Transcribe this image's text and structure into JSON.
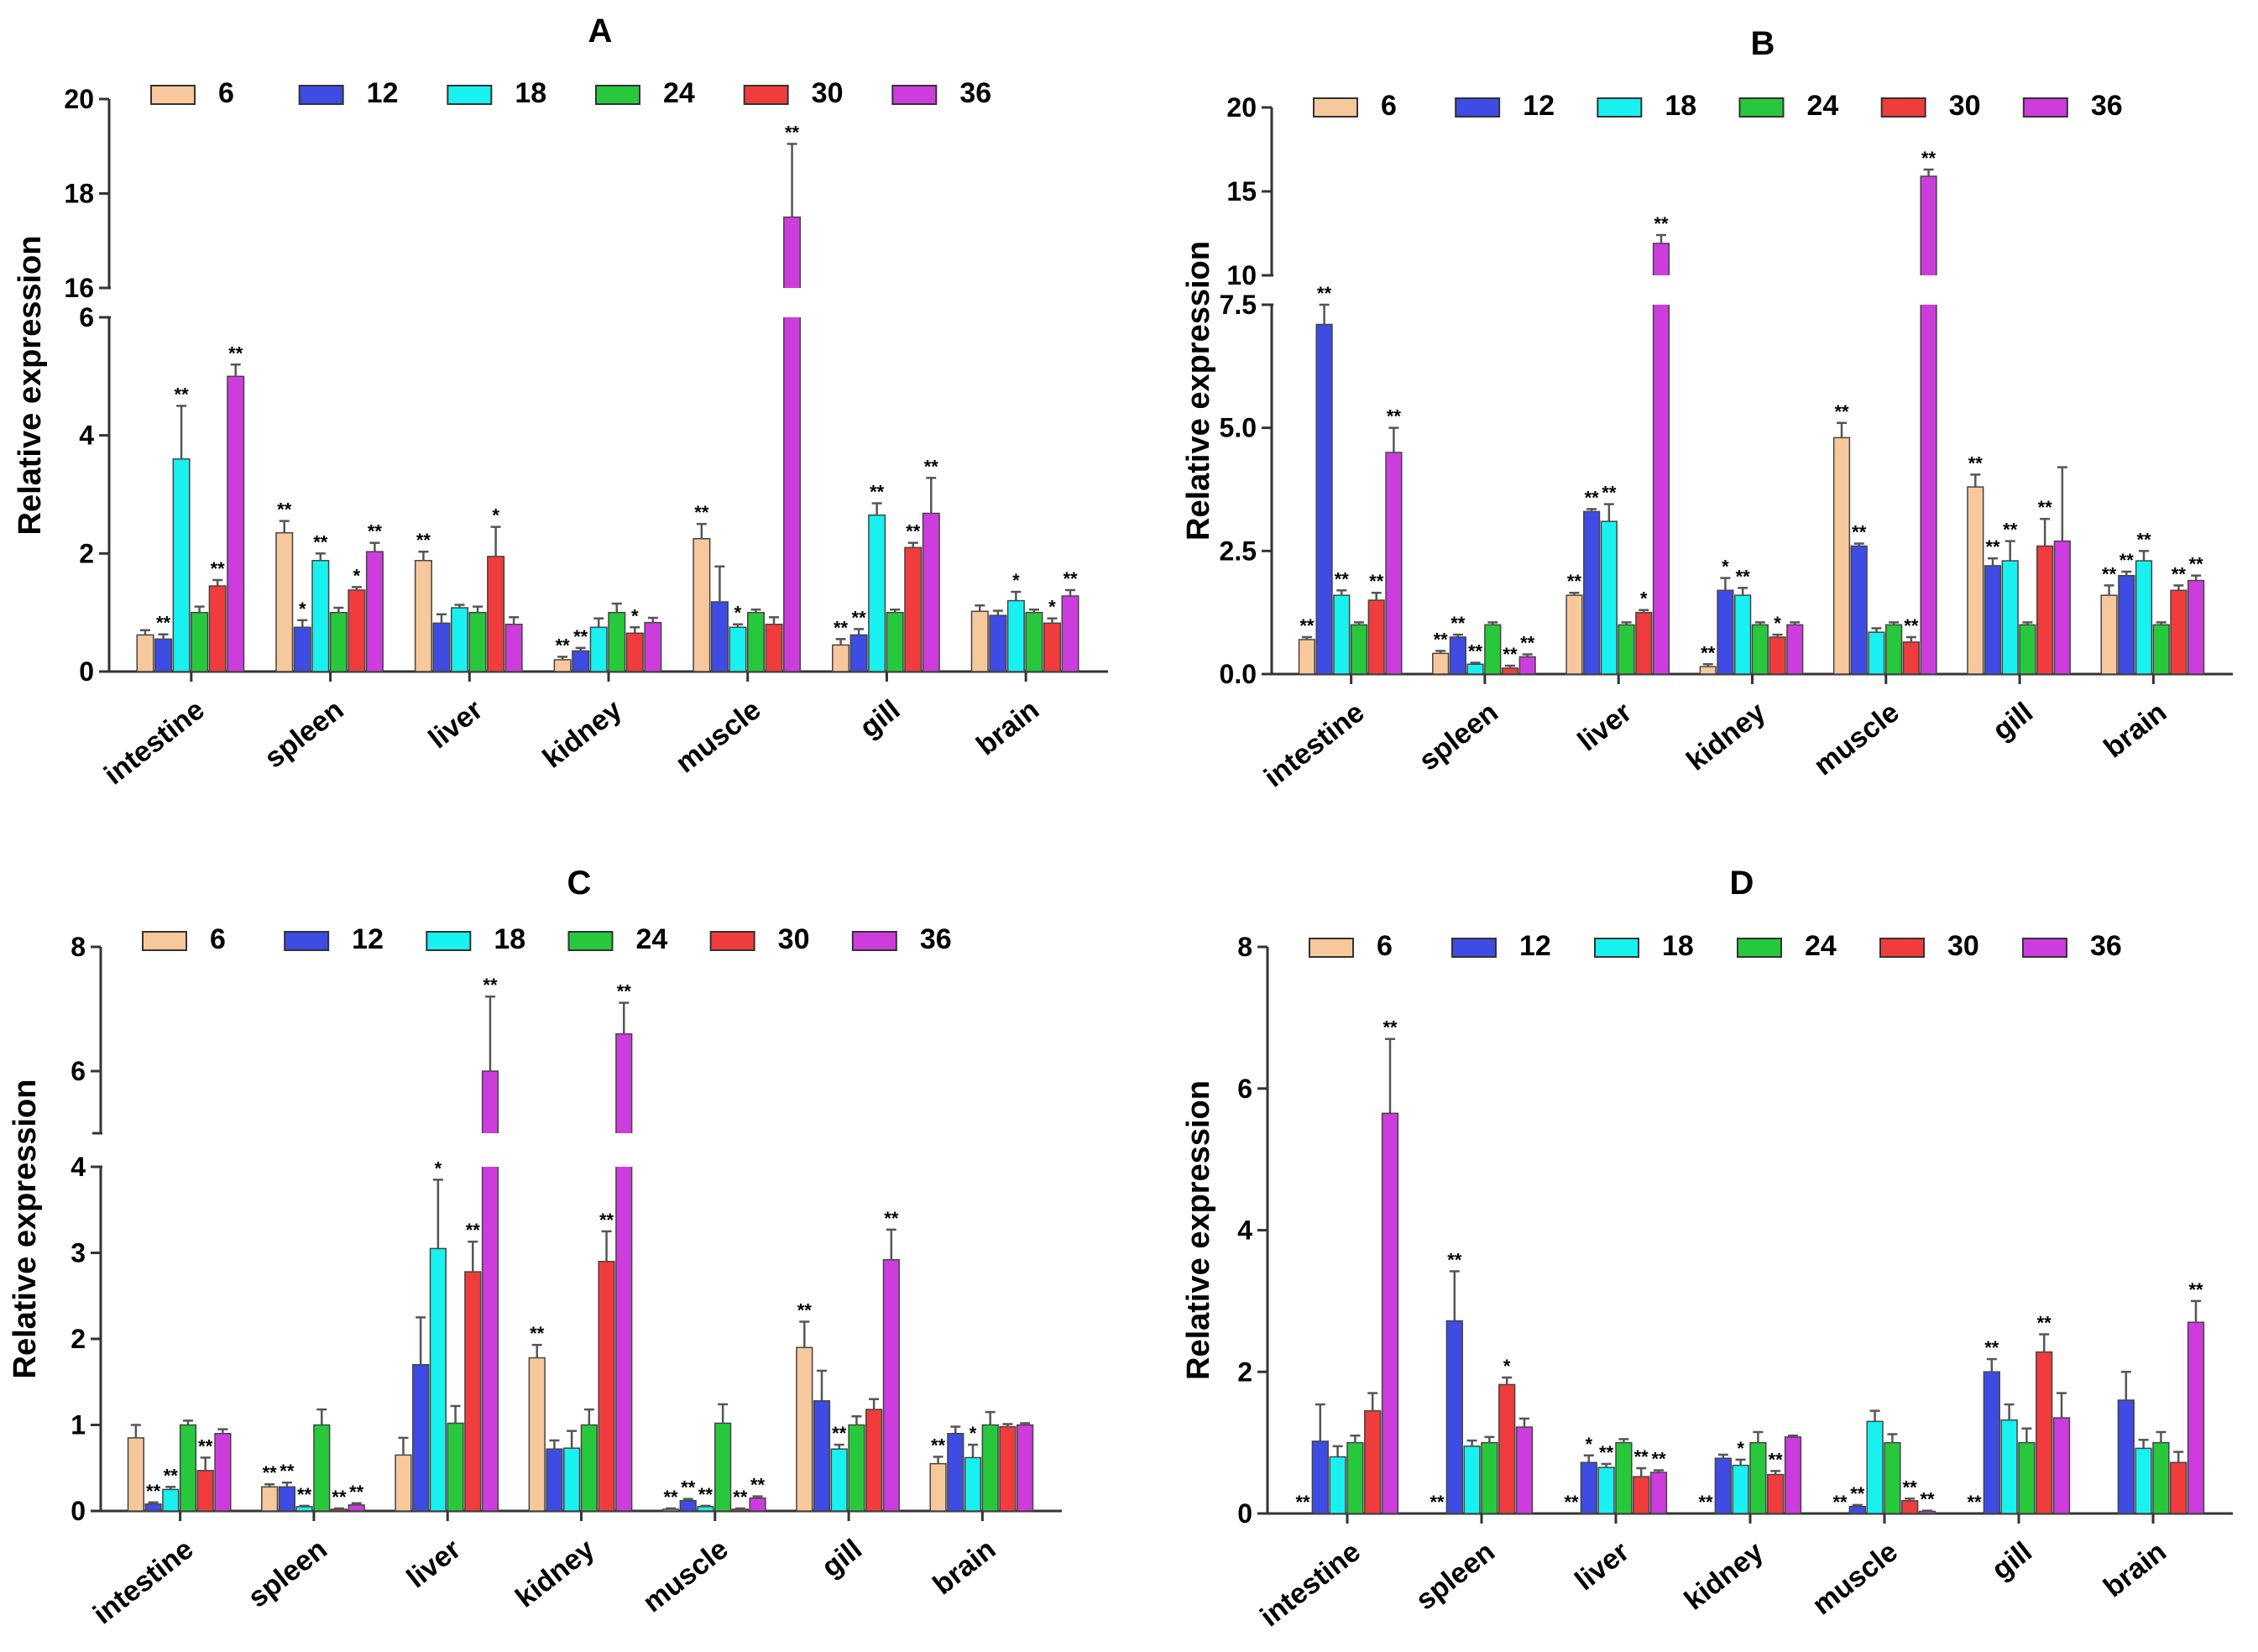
{
  "chart_data": [
    {
      "panel": "A",
      "type": "bar",
      "title": "A",
      "xlabel": "",
      "ylabel": "Relative expression",
      "categories": [
        "intestine",
        "spleen",
        "liver",
        "kidney",
        "muscle",
        "gill",
        "brain"
      ],
      "ylim": [
        0,
        20
      ],
      "y_break": [
        6,
        16
      ],
      "yticks": [
        0,
        2,
        4,
        6,
        16,
        18,
        20
      ],
      "ytick_labels": [
        "0",
        "2",
        "4",
        "6",
        "16",
        "18",
        "20"
      ],
      "series": [
        {
          "name": "6",
          "color": "#f7c89b",
          "values": [
            0.62,
            2.35,
            1.88,
            0.2,
            2.25,
            0.45,
            1.02
          ],
          "errors": [
            0.08,
            0.2,
            0.15,
            0.05,
            0.25,
            0.1,
            0.1
          ],
          "sig": [
            "",
            "**",
            "**",
            "**",
            "**",
            "**",
            ""
          ]
        },
        {
          "name": "12",
          "color": "#3e4ce3",
          "values": [
            0.55,
            0.75,
            0.82,
            0.35,
            1.18,
            0.62,
            0.95
          ],
          "errors": [
            0.08,
            0.12,
            0.15,
            0.05,
            0.6,
            0.1,
            0.08
          ],
          "sig": [
            "**",
            "*",
            "",
            "**",
            "",
            "**",
            ""
          ]
        },
        {
          "name": "18",
          "color": "#19f0f0",
          "values": [
            3.6,
            1.88,
            1.08,
            0.75,
            0.75,
            2.65,
            1.2
          ],
          "errors": [
            0.9,
            0.12,
            0.05,
            0.15,
            0.05,
            0.2,
            0.15
          ],
          "sig": [
            "**",
            "**",
            "",
            "",
            "*",
            "**",
            "*"
          ]
        },
        {
          "name": "24",
          "color": "#28c83c",
          "values": [
            1.0,
            1.0,
            1.0,
            1.0,
            1.0,
            1.0,
            1.0
          ],
          "errors": [
            0.1,
            0.08,
            0.1,
            0.15,
            0.05,
            0.05,
            0.05
          ],
          "sig": [
            "",
            "",
            "",
            "",
            "",
            "",
            ""
          ]
        },
        {
          "name": "30",
          "color": "#f03c3c",
          "values": [
            1.45,
            1.38,
            1.95,
            0.65,
            0.8,
            2.1,
            0.82
          ],
          "errors": [
            0.1,
            0.05,
            0.5,
            0.1,
            0.12,
            0.08,
            0.08
          ],
          "sig": [
            "**",
            "*",
            "*",
            "*",
            "",
            "**",
            "*"
          ]
        },
        {
          "name": "36",
          "color": "#cd3cdc",
          "values": [
            5.0,
            2.03,
            0.8,
            0.83,
            17.5,
            2.68,
            1.28
          ],
          "errors": [
            0.2,
            0.15,
            0.12,
            0.08,
            1.55,
            0.6,
            0.1
          ],
          "sig": [
            "**",
            "**",
            "",
            "",
            "**",
            "**",
            "**"
          ]
        }
      ]
    },
    {
      "panel": "B",
      "type": "bar",
      "title": "B",
      "xlabel": "",
      "ylabel": "Relative expression",
      "categories": [
        "intestine",
        "spleen",
        "liver",
        "kidney",
        "muscle",
        "gill",
        "brain"
      ],
      "ylim": [
        0,
        20
      ],
      "y_break": [
        7.5,
        10
      ],
      "yticks": [
        0,
        2.5,
        5,
        7.5,
        10,
        15,
        20
      ],
      "ytick_labels": [
        "0.0",
        "2.5",
        "5.0",
        "7.5",
        "10",
        "15",
        "20"
      ],
      "series": [
        {
          "name": "6",
          "color": "#f7c89b",
          "values": [
            0.7,
            0.42,
            1.6,
            0.15,
            4.8,
            3.8,
            1.6
          ],
          "errors": [
            0.05,
            0.05,
            0.05,
            0.05,
            0.3,
            0.25,
            0.2
          ],
          "sig": [
            "**",
            "**",
            "**",
            "**",
            "**",
            "**",
            "**"
          ]
        },
        {
          "name": "12",
          "color": "#3e4ce3",
          "values": [
            7.1,
            0.75,
            3.3,
            1.7,
            2.6,
            2.2,
            2.0
          ],
          "errors": [
            0.6,
            0.05,
            0.05,
            0.25,
            0.05,
            0.15,
            0.08
          ],
          "sig": [
            "**",
            "**",
            "**",
            "*",
            "**",
            "**",
            "**"
          ]
        },
        {
          "name": "18",
          "color": "#19f0f0",
          "values": [
            1.6,
            0.2,
            3.1,
            1.6,
            0.85,
            2.3,
            2.3
          ],
          "errors": [
            0.1,
            0.03,
            0.35,
            0.15,
            0.08,
            0.4,
            0.2
          ],
          "sig": [
            "**",
            "**",
            "**",
            "**",
            "",
            "**",
            "**"
          ]
        },
        {
          "name": "24",
          "color": "#28c83c",
          "values": [
            1.0,
            1.0,
            1.0,
            1.0,
            1.0,
            1.0,
            1.0
          ],
          "errors": [
            0.05,
            0.05,
            0.05,
            0.05,
            0.05,
            0.05,
            0.05
          ],
          "sig": [
            "",
            "",
            "",
            "",
            "",
            "",
            ""
          ]
        },
        {
          "name": "30",
          "color": "#f03c3c",
          "values": [
            1.5,
            0.12,
            1.25,
            0.75,
            0.65,
            2.6,
            1.7
          ],
          "errors": [
            0.15,
            0.05,
            0.05,
            0.05,
            0.1,
            0.55,
            0.1
          ],
          "sig": [
            "**",
            "**",
            "*",
            "*",
            "**",
            "**",
            "**"
          ]
        },
        {
          "name": "36",
          "color": "#cd3cdc",
          "values": [
            4.5,
            0.35,
            11.9,
            1.0,
            15.9,
            2.7,
            1.9
          ],
          "errors": [
            0.5,
            0.05,
            0.5,
            0.05,
            0.4,
            1.5,
            0.1
          ],
          "sig": [
            "**",
            "**",
            "**",
            "",
            "**",
            "",
            "**"
          ]
        }
      ]
    },
    {
      "panel": "C",
      "type": "bar",
      "title": "C",
      "xlabel": "",
      "ylabel": "Relative expression",
      "categories": [
        "intestine",
        "spleen",
        "liver",
        "kidney",
        "muscle",
        "gill",
        "brain"
      ],
      "ylim": [
        0,
        8
      ],
      "y_break": [
        4,
        5
      ],
      "yticks": [
        0,
        1,
        2,
        3,
        4,
        6,
        8
      ],
      "ytick_labels": [
        "0",
        "1",
        "2",
        "3",
        "4",
        "6",
        "8"
      ],
      "series": [
        {
          "name": "6",
          "color": "#f7c89b",
          "values": [
            0.85,
            0.28,
            0.65,
            1.78,
            0.02,
            1.9,
            0.55
          ],
          "errors": [
            0.15,
            0.03,
            0.2,
            0.15,
            0.01,
            0.3,
            0.08
          ],
          "sig": [
            "",
            "**",
            "",
            "**",
            "**",
            "**",
            "**"
          ]
        },
        {
          "name": "12",
          "color": "#3e4ce3",
          "values": [
            0.08,
            0.28,
            1.7,
            0.72,
            0.12,
            1.28,
            0.9
          ],
          "errors": [
            0.02,
            0.05,
            0.55,
            0.1,
            0.02,
            0.35,
            0.08
          ],
          "sig": [
            "**",
            "**",
            "",
            "",
            "**",
            "",
            ""
          ]
        },
        {
          "name": "18",
          "color": "#19f0f0",
          "values": [
            0.25,
            0.05,
            3.05,
            0.73,
            0.05,
            0.72,
            0.62
          ],
          "errors": [
            0.03,
            0.01,
            0.8,
            0.2,
            0.01,
            0.05,
            0.15
          ],
          "sig": [
            "**",
            "**",
            "*",
            "",
            "**",
            "**",
            "*"
          ]
        },
        {
          "name": "24",
          "color": "#28c83c",
          "values": [
            1.0,
            1.0,
            1.02,
            1.0,
            1.02,
            1.0,
            1.0
          ],
          "errors": [
            0.05,
            0.18,
            0.2,
            0.18,
            0.22,
            0.1,
            0.15
          ],
          "sig": [
            "",
            "",
            "",
            "",
            "",
            "",
            ""
          ]
        },
        {
          "name": "30",
          "color": "#f03c3c",
          "values": [
            0.47,
            0.02,
            2.78,
            2.9,
            0.02,
            1.18,
            0.98
          ],
          "errors": [
            0.15,
            0.01,
            0.35,
            0.35,
            0.01,
            0.12,
            0.03
          ],
          "sig": [
            "**",
            "**",
            "**",
            "**",
            "**",
            "",
            ""
          ]
        },
        {
          "name": "36",
          "color": "#cd3cdc",
          "values": [
            0.9,
            0.07,
            6.0,
            6.6,
            0.15,
            2.92,
            1.0
          ],
          "errors": [
            0.05,
            0.02,
            1.2,
            0.5,
            0.02,
            0.35,
            0.02
          ],
          "sig": [
            "",
            "**",
            "**",
            "**",
            "**",
            "**",
            ""
          ]
        }
      ]
    },
    {
      "panel": "D",
      "type": "bar",
      "title": "D",
      "xlabel": "",
      "ylabel": "Relative expression",
      "categories": [
        "intestine",
        "spleen",
        "liver",
        "kidney",
        "muscle",
        "gill",
        "brain"
      ],
      "ylim": [
        0,
        8
      ],
      "y_break": null,
      "yticks": [
        0,
        2,
        4,
        6,
        8
      ],
      "ytick_labels": [
        "0",
        "2",
        "4",
        "6",
        "8"
      ],
      "series": [
        {
          "name": "6",
          "color": "#f7c89b",
          "values": [
            0.0,
            0.0,
            0.0,
            0.0,
            0.0,
            0.0,
            0.0
          ],
          "errors": [
            0,
            0,
            0,
            0,
            0,
            0,
            0
          ],
          "sig": [
            "**",
            "**",
            "**",
            "**",
            "**",
            "**",
            ""
          ]
        },
        {
          "name": "12",
          "color": "#3e4ce3",
          "values": [
            1.02,
            2.72,
            0.72,
            0.78,
            0.1,
            2.0,
            1.6
          ],
          "errors": [
            0.52,
            0.7,
            0.1,
            0.05,
            0.02,
            0.18,
            0.4
          ],
          "sig": [
            "",
            "**",
            "*",
            "",
            "**",
            "**",
            ""
          ]
        },
        {
          "name": "18",
          "color": "#19f0f0",
          "values": [
            0.8,
            0.95,
            0.65,
            0.68,
            1.3,
            1.32,
            0.92
          ],
          "errors": [
            0.15,
            0.08,
            0.05,
            0.08,
            0.15,
            0.22,
            0.12
          ],
          "sig": [
            "",
            "",
            "**",
            "*",
            "",
            "",
            ""
          ]
        },
        {
          "name": "24",
          "color": "#28c83c",
          "values": [
            1.0,
            1.0,
            1.0,
            1.0,
            1.0,
            1.0,
            1.0
          ],
          "errors": [
            0.1,
            0.08,
            0.05,
            0.15,
            0.12,
            0.2,
            0.15
          ],
          "sig": [
            "",
            "",
            "",
            "",
            "",
            "",
            ""
          ]
        },
        {
          "name": "30",
          "color": "#f03c3c",
          "values": [
            1.45,
            1.82,
            0.52,
            0.55,
            0.18,
            2.28,
            0.72
          ],
          "errors": [
            0.25,
            0.1,
            0.12,
            0.05,
            0.03,
            0.25,
            0.15
          ],
          "sig": [
            "",
            "*",
            "**",
            "**",
            "**",
            "**",
            ""
          ]
        },
        {
          "name": "36",
          "color": "#cd3cdc",
          "values": [
            5.65,
            1.22,
            0.58,
            1.08,
            0.03,
            1.35,
            2.7
          ],
          "errors": [
            1.05,
            0.12,
            0.03,
            0.02,
            0.01,
            0.35,
            0.3
          ],
          "sig": [
            "**",
            "",
            "**",
            "",
            "**",
            "",
            "**"
          ]
        }
      ]
    }
  ]
}
